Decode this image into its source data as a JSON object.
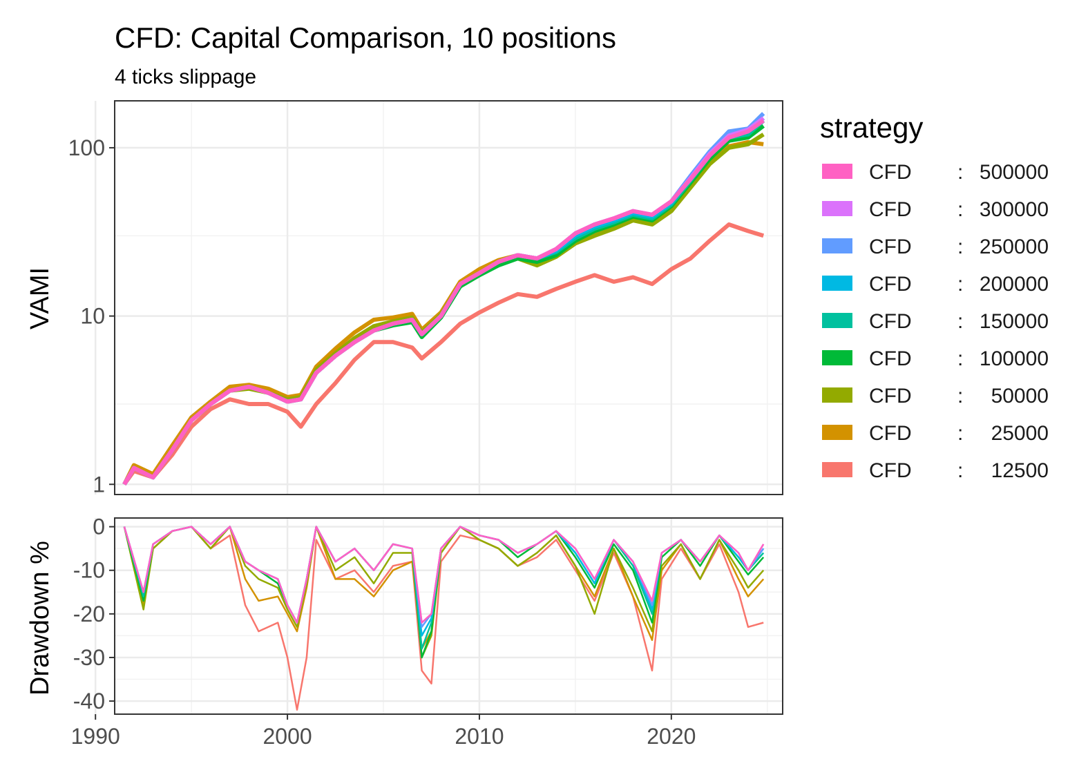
{
  "chart_data": [
    {
      "type": "line",
      "title": "CFD: Capital Comparison, 10 positions",
      "subtitle": "4 ticks slippage",
      "ylabel": "VAMI",
      "y_scale": "log",
      "ylim": [
        0.87,
        190
      ],
      "xlim": [
        1991.0,
        2025.8
      ],
      "x_ticks": [
        "1990",
        "2000",
        "2010",
        "2020"
      ],
      "y_ticks": [
        "1",
        "10",
        "100"
      ],
      "grid": true,
      "legend_position": "right",
      "x": [
        1991.5,
        1992.0,
        1993.0,
        1994.0,
        1995.0,
        1996.0,
        1997.0,
        1998.0,
        1999.0,
        2000.0,
        2000.7,
        2001.5,
        2002.5,
        2003.5,
        2004.5,
        2005.5,
        2006.5,
        2007.0,
        2008.0,
        2009.0,
        2010.0,
        2011.0,
        2012.0,
        2013.0,
        2014.0,
        2015.0,
        2016.0,
        2017.0,
        2018.0,
        2019.0,
        2020.0,
        2021.0,
        2022.0,
        2023.0,
        2024.0,
        2024.8
      ],
      "series": [
        {
          "name": "CFD : 500000",
          "color": "#FF61C3",
          "values": [
            1.0,
            1.25,
            1.1,
            1.6,
            2.4,
            3.0,
            3.6,
            3.8,
            3.5,
            3.1,
            3.2,
            4.6,
            5.8,
            7.0,
            8.2,
            9.0,
            9.5,
            7.8,
            10.0,
            15.5,
            18.0,
            21.0,
            23.0,
            22.0,
            25.0,
            31.0,
            35.0,
            38.0,
            42.0,
            40.0,
            48.0,
            65.0,
            90.0,
            115.0,
            125.0,
            145.0
          ]
        },
        {
          "name": "CFD : 300000",
          "color": "#DB72FB",
          "values": [
            1.0,
            1.25,
            1.1,
            1.6,
            2.4,
            3.0,
            3.6,
            3.8,
            3.5,
            3.1,
            3.2,
            4.6,
            5.8,
            7.0,
            8.2,
            9.0,
            9.5,
            7.8,
            10.0,
            15.5,
            18.0,
            21.0,
            23.0,
            22.0,
            25.0,
            31.0,
            35.0,
            38.0,
            42.0,
            40.0,
            48.0,
            66.0,
            92.0,
            118.0,
            128.0,
            150.0
          ]
        },
        {
          "name": "CFD : 250000",
          "color": "#619CFF",
          "values": [
            1.0,
            1.25,
            1.1,
            1.6,
            2.4,
            3.0,
            3.6,
            3.8,
            3.5,
            3.1,
            3.2,
            4.6,
            5.8,
            7.0,
            8.2,
            9.0,
            9.5,
            7.8,
            10.0,
            15.5,
            18.0,
            21.0,
            23.0,
            22.0,
            25.0,
            31.0,
            35.0,
            38.0,
            42.0,
            40.0,
            48.0,
            68.0,
            95.0,
            125.0,
            130.0,
            160.0
          ]
        },
        {
          "name": "CFD : 200000",
          "color": "#00B9E3",
          "values": [
            1.0,
            1.25,
            1.1,
            1.6,
            2.4,
            3.0,
            3.6,
            3.8,
            3.5,
            3.1,
            3.2,
            4.6,
            5.8,
            7.0,
            8.2,
            9.0,
            9.5,
            7.8,
            10.0,
            15.5,
            18.0,
            21.0,
            23.0,
            22.0,
            24.5,
            30.0,
            34.0,
            37.0,
            41.0,
            39.0,
            47.0,
            66.0,
            92.0,
            120.0,
            125.0,
            150.0
          ]
        },
        {
          "name": "CFD : 150000",
          "color": "#00C19F",
          "values": [
            1.0,
            1.25,
            1.1,
            1.6,
            2.4,
            3.0,
            3.6,
            3.8,
            3.5,
            3.1,
            3.2,
            4.6,
            5.8,
            7.0,
            8.2,
            9.0,
            9.5,
            7.8,
            10.0,
            15.5,
            18.0,
            21.0,
            23.0,
            22.0,
            24.0,
            29.0,
            33.0,
            36.0,
            40.0,
            38.0,
            46.0,
            64.0,
            90.0,
            115.0,
            120.0,
            145.0
          ]
        },
        {
          "name": "CFD : 100000",
          "color": "#00BA38",
          "values": [
            1.0,
            1.25,
            1.1,
            1.6,
            2.4,
            3.0,
            3.6,
            3.8,
            3.5,
            3.1,
            3.2,
            4.6,
            5.8,
            7.0,
            8.2,
            8.8,
            9.2,
            7.5,
            9.8,
            15.0,
            17.5,
            20.0,
            22.0,
            21.0,
            23.0,
            28.0,
            32.0,
            35.0,
            39.0,
            37.0,
            45.0,
            62.0,
            86.0,
            110.0,
            115.0,
            135.0
          ]
        },
        {
          "name": "CFD : 50000",
          "color": "#93AA00",
          "values": [
            1.0,
            1.25,
            1.1,
            1.6,
            2.4,
            3.0,
            3.6,
            3.7,
            3.5,
            3.2,
            3.3,
            4.8,
            6.0,
            7.4,
            8.7,
            9.3,
            9.8,
            8.0,
            10.2,
            15.5,
            18.0,
            20.5,
            22.0,
            20.0,
            22.5,
            27.0,
            30.0,
            33.0,
            37.0,
            35.0,
            42.0,
            58.0,
            80.0,
            100.0,
            105.0,
            120.0
          ]
        },
        {
          "name": "CFD : 25000",
          "color": "#D39200",
          "values": [
            1.0,
            1.3,
            1.15,
            1.7,
            2.5,
            3.1,
            3.8,
            3.9,
            3.7,
            3.3,
            3.4,
            5.0,
            6.4,
            8.0,
            9.5,
            9.8,
            10.3,
            8.3,
            10.5,
            16.0,
            19.0,
            21.5,
            23.0,
            21.0,
            23.5,
            28.0,
            31.0,
            34.0,
            38.0,
            36.0,
            43.0,
            60.0,
            82.0,
            102.0,
            108.0,
            105.0
          ]
        },
        {
          "name": "CFD : 12500",
          "color": "#F8766D",
          "values": [
            1.0,
            1.2,
            1.1,
            1.5,
            2.2,
            2.8,
            3.2,
            3.0,
            3.0,
            2.7,
            2.2,
            3.0,
            4.0,
            5.5,
            7.0,
            7.0,
            6.5,
            5.6,
            7.0,
            9.0,
            10.5,
            12.0,
            13.5,
            13.0,
            14.5,
            16.0,
            17.5,
            16.0,
            17.0,
            15.5,
            19.0,
            22.0,
            28.0,
            35.0,
            32.0,
            30.0
          ]
        }
      ]
    },
    {
      "type": "line",
      "ylabel": "Drawdown %",
      "xlabel": "",
      "xlim": [
        1991.0,
        2025.8
      ],
      "ylim": [
        -43,
        2
      ],
      "x_ticks": [
        "1990",
        "2000",
        "2010",
        "2020"
      ],
      "y_ticks": [
        "0",
        "-10",
        "-20",
        "-30",
        "-40"
      ],
      "grid": true,
      "x": [
        1991.5,
        1992.5,
        1993.0,
        1994.0,
        1995.0,
        1996.0,
        1997.0,
        1997.8,
        1998.5,
        1999.5,
        2000.0,
        2000.5,
        2001.0,
        2001.5,
        2002.5,
        2003.5,
        2004.5,
        2005.5,
        2006.5,
        2007.0,
        2007.5,
        2008.0,
        2009.0,
        2010.0,
        2011.0,
        2012.0,
        2013.0,
        2014.0,
        2015.0,
        2016.0,
        2017.0,
        2018.0,
        2019.0,
        2019.5,
        2020.5,
        2021.5,
        2022.5,
        2023.5,
        2024.0,
        2024.8
      ],
      "series": [
        {
          "name": "CFD : 500000",
          "color": "#FF61C3",
          "values": [
            0,
            -15,
            -4,
            -1,
            0,
            -4,
            0,
            -8,
            -10,
            -12,
            -18,
            -22,
            -12,
            0,
            -8,
            -5,
            -10,
            -4,
            -5,
            -22,
            -20,
            -5,
            0,
            -2,
            -3,
            -6,
            -4,
            -1,
            -5,
            -12,
            -3,
            -8,
            -17,
            -6,
            -3,
            -8,
            -2,
            -6,
            -10,
            -4
          ]
        },
        {
          "name": "CFD : 300000",
          "color": "#DB72FB",
          "values": [
            0,
            -15,
            -4,
            -1,
            0,
            -4,
            0,
            -8,
            -10,
            -12,
            -18,
            -22,
            -12,
            0,
            -8,
            -5,
            -10,
            -4,
            -5,
            -22,
            -20,
            -5,
            0,
            -2,
            -3,
            -6,
            -4,
            -1,
            -5,
            -12,
            -3,
            -8,
            -17,
            -6,
            -3,
            -8,
            -2,
            -6,
            -10,
            -4
          ]
        },
        {
          "name": "CFD : 250000",
          "color": "#619CFF",
          "values": [
            0,
            -15,
            -4,
            -1,
            0,
            -4,
            0,
            -8,
            -10,
            -12,
            -18,
            -22,
            -12,
            0,
            -8,
            -5,
            -10,
            -4,
            -5,
            -23,
            -20,
            -5,
            0,
            -2,
            -3,
            -6,
            -4,
            -1,
            -5,
            -12,
            -3,
            -8,
            -18,
            -6,
            -3,
            -8,
            -2,
            -6,
            -10,
            -5
          ]
        },
        {
          "name": "CFD : 200000",
          "color": "#00B9E3",
          "values": [
            0,
            -15,
            -4,
            -1,
            0,
            -4,
            0,
            -8,
            -10,
            -12,
            -18,
            -22,
            -12,
            0,
            -8,
            -5,
            -10,
            -4,
            -5,
            -25,
            -21,
            -5,
            0,
            -2,
            -3,
            -6,
            -4,
            -1,
            -6,
            -13,
            -3,
            -8,
            -19,
            -6,
            -3,
            -8,
            -2,
            -7,
            -10,
            -5
          ]
        },
        {
          "name": "CFD : 150000",
          "color": "#00C19F",
          "values": [
            0,
            -16,
            -4,
            -1,
            0,
            -4,
            0,
            -8,
            -10,
            -12,
            -18,
            -22,
            -12,
            0,
            -8,
            -5,
            -10,
            -4,
            -5,
            -28,
            -22,
            -5,
            0,
            -2,
            -3,
            -6,
            -4,
            -1,
            -6,
            -13,
            -3,
            -9,
            -20,
            -6,
            -3,
            -8,
            -2,
            -7,
            -10,
            -6
          ]
        },
        {
          "name": "CFD : 100000",
          "color": "#00BA38",
          "values": [
            0,
            -17,
            -4,
            -1,
            0,
            -4,
            0,
            -8,
            -10,
            -13,
            -18,
            -22,
            -12,
            0,
            -8,
            -5,
            -10,
            -4,
            -5,
            -30,
            -24,
            -5,
            0,
            -2,
            -3,
            -7,
            -4,
            -1,
            -7,
            -14,
            -4,
            -10,
            -22,
            -7,
            -3,
            -9,
            -2,
            -8,
            -11,
            -7
          ]
        },
        {
          "name": "CFD : 50000",
          "color": "#93AA00",
          "values": [
            0,
            -19,
            -5,
            -1,
            0,
            -5,
            0,
            -9,
            -12,
            -14,
            -19,
            -23,
            -13,
            0,
            -10,
            -7,
            -13,
            -6,
            -6,
            -30,
            -25,
            -6,
            0,
            -3,
            -5,
            -9,
            -6,
            -2,
            -9,
            -20,
            -5,
            -14,
            -24,
            -9,
            -4,
            -12,
            -3,
            -10,
            -14,
            -10
          ]
        },
        {
          "name": "CFD : 25000",
          "color": "#D39200",
          "values": [
            0,
            -18,
            -5,
            -1,
            0,
            -5,
            0,
            -12,
            -17,
            -16,
            -20,
            -24,
            -14,
            0,
            -12,
            -12,
            -16,
            -10,
            -8,
            -28,
            -24,
            -6,
            0,
            -3,
            -5,
            -9,
            -6,
            -2,
            -9,
            -16,
            -5,
            -16,
            -26,
            -10,
            -4,
            -12,
            -3,
            -12,
            -16,
            -12
          ]
        },
        {
          "name": "CFD : 12500",
          "color": "#F8766D",
          "values": [
            0,
            -15,
            -5,
            -1,
            0,
            -5,
            -2,
            -18,
            -24,
            -22,
            -30,
            -42,
            -30,
            -3,
            -12,
            -10,
            -15,
            -9,
            -8,
            -33,
            -36,
            -8,
            -2,
            -3,
            -5,
            -9,
            -7,
            -3,
            -10,
            -17,
            -6,
            -16,
            -33,
            -12,
            -5,
            -12,
            -4,
            -15,
            -23,
            -22
          ]
        }
      ]
    }
  ],
  "legend": {
    "title": "strategy",
    "items": [
      {
        "name": "CFD",
        "sep": ":",
        "value": "500000",
        "color": "#FF61C3"
      },
      {
        "name": "CFD",
        "sep": ":",
        "value": "300000",
        "color": "#DB72FB"
      },
      {
        "name": "CFD",
        "sep": ":",
        "value": "250000",
        "color": "#619CFF"
      },
      {
        "name": "CFD",
        "sep": ":",
        "value": "200000",
        "color": "#00B9E3"
      },
      {
        "name": "CFD",
        "sep": ":",
        "value": "150000",
        "color": "#00C19F"
      },
      {
        "name": "CFD",
        "sep": ":",
        "value": "100000",
        "color": "#00BA38"
      },
      {
        "name": "CFD",
        "sep": ":",
        "value": "50000",
        "color": "#93AA00"
      },
      {
        "name": "CFD",
        "sep": ":",
        "value": "25000",
        "color": "#D39200"
      },
      {
        "name": "CFD",
        "sep": ":",
        "value": "12500",
        "color": "#F8766D"
      }
    ]
  }
}
